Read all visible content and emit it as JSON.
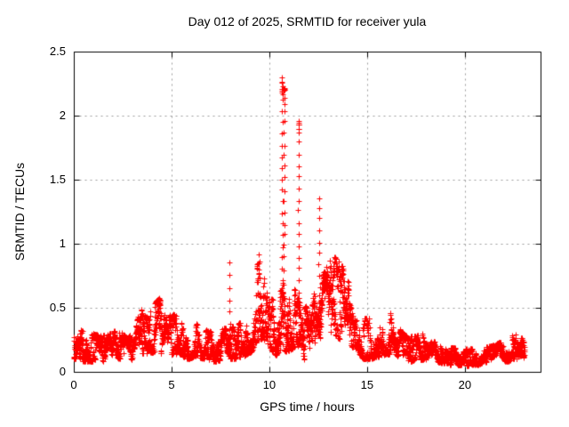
{
  "window": {
    "background": "#ffffff"
  },
  "chart_data": {
    "type": "scatter",
    "title": "Day 012 of 2025, SRMTID for receiver yula",
    "xlabel": "GPS time / hours",
    "ylabel": "SRMTID / TECUs",
    "xlim": [
      0,
      23.87
    ],
    "ylim": [
      0,
      2.5
    ],
    "xtick_values": [
      0,
      5,
      10,
      15,
      20
    ],
    "xtick_labels": [
      "0",
      "5",
      "10",
      "15",
      "20"
    ],
    "ytick_values": [
      0,
      0.5,
      1,
      1.5,
      2,
      2.5
    ],
    "ytick_labels": [
      "0",
      "0.5",
      "1",
      "1.5",
      "2",
      "2.5"
    ],
    "grid": {
      "on": true,
      "style": "dashed",
      "color": "#9a9a9a"
    },
    "border_color": "#000000",
    "marker": {
      "shape": "plus",
      "color": "#ff0000",
      "size": 7
    },
    "series_name": "SRMTID",
    "sampling": {
      "start": 0.0,
      "end": 23.05,
      "step_hours": 0.01,
      "walkers": 2,
      "seed": 7
    },
    "envelope": [
      [
        0,
        0.1,
        0.35
      ],
      [
        0.4,
        0.08,
        0.32
      ],
      [
        0.9,
        0.08,
        0.3
      ],
      [
        1.4,
        0.08,
        0.28
      ],
      [
        1.9,
        0.09,
        0.3
      ],
      [
        2.3,
        0.1,
        0.34
      ],
      [
        2.7,
        0.08,
        0.26
      ],
      [
        3.1,
        0.1,
        0.32
      ],
      [
        3.4,
        0.14,
        0.5
      ],
      [
        3.7,
        0.14,
        0.42
      ],
      [
        4.0,
        0.15,
        0.5
      ],
      [
        4.35,
        0.15,
        0.58
      ],
      [
        4.7,
        0.12,
        0.42
      ],
      [
        5.0,
        0.14,
        0.46
      ],
      [
        5.4,
        0.14,
        0.42
      ],
      [
        5.8,
        0.1,
        0.36
      ],
      [
        6.2,
        0.12,
        0.38
      ],
      [
        6.7,
        0.1,
        0.33
      ],
      [
        7.2,
        0.08,
        0.3
      ],
      [
        7.7,
        0.1,
        0.34
      ],
      [
        8.2,
        0.1,
        0.36
      ],
      [
        8.7,
        0.12,
        0.4
      ],
      [
        9.1,
        0.16,
        0.48
      ],
      [
        9.4,
        0.25,
        0.88
      ],
      [
        9.7,
        0.25,
        0.8
      ],
      [
        10.0,
        0.2,
        0.68
      ],
      [
        10.3,
        0.12,
        0.55
      ],
      [
        10.6,
        0.18,
        0.85
      ],
      [
        10.9,
        0.15,
        0.72
      ],
      [
        11.2,
        0.18,
        0.65
      ],
      [
        11.5,
        0.2,
        0.62
      ],
      [
        11.8,
        0.08,
        0.5
      ],
      [
        12.1,
        0.12,
        0.55
      ],
      [
        12.4,
        0.18,
        0.65
      ],
      [
        12.7,
        0.25,
        0.75
      ],
      [
        13.0,
        0.3,
        0.85
      ],
      [
        13.3,
        0.3,
        0.9
      ],
      [
        13.6,
        0.25,
        0.86
      ],
      [
        13.9,
        0.28,
        0.76
      ],
      [
        14.2,
        0.2,
        0.62
      ],
      [
        14.5,
        0.15,
        0.52
      ],
      [
        14.8,
        0.1,
        0.42
      ],
      [
        15.2,
        0.1,
        0.42
      ],
      [
        15.6,
        0.12,
        0.46
      ],
      [
        16.0,
        0.14,
        0.45
      ],
      [
        16.4,
        0.14,
        0.47
      ],
      [
        16.7,
        0.1,
        0.32
      ],
      [
        17.0,
        0.08,
        0.28
      ],
      [
        17.5,
        0.09,
        0.28
      ],
      [
        17.9,
        0.1,
        0.3
      ],
      [
        18.3,
        0.08,
        0.24
      ],
      [
        18.8,
        0.07,
        0.22
      ],
      [
        19.3,
        0.05,
        0.19
      ],
      [
        19.8,
        0.05,
        0.18
      ],
      [
        20.3,
        0.05,
        0.18
      ],
      [
        20.8,
        0.06,
        0.19
      ],
      [
        21.3,
        0.06,
        0.2
      ],
      [
        21.8,
        0.08,
        0.23
      ],
      [
        22.2,
        0.08,
        0.25
      ],
      [
        22.5,
        0.1,
        0.3
      ],
      [
        22.8,
        0.1,
        0.28
      ],
      [
        23.05,
        0.1,
        0.24
      ]
    ],
    "spikes": [
      {
        "t": 7.97,
        "base": 0.28,
        "peak": 0.85,
        "cluster_top": false
      },
      {
        "t": 9.45,
        "base": 0.5,
        "peak": 0.9,
        "cluster_top": false
      },
      {
        "t": 10.66,
        "base": 0.35,
        "peak": 2.3,
        "cluster_top": true
      },
      {
        "t": 10.76,
        "base": 0.8,
        "peak": 2.22,
        "cluster_top": true
      },
      {
        "t": 11.5,
        "base": 0.45,
        "peak": 1.97,
        "cluster_top": true
      },
      {
        "t": 12.55,
        "base": 0.5,
        "peak": 1.36,
        "cluster_top": false
      }
    ]
  }
}
